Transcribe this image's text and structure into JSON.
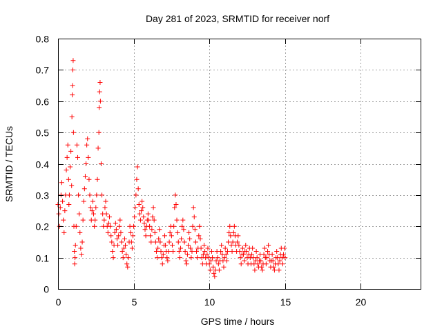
{
  "chart_data": {
    "type": "scatter",
    "title": "Day 281 of 2023, SRMTID for receiver norf",
    "xlabel": "GPS time / hours",
    "ylabel": "SRMTID / TECUs",
    "xlim": [
      0,
      24
    ],
    "ylim": [
      0,
      0.8
    ],
    "xticks": [
      0,
      5,
      10,
      15,
      20
    ],
    "xtick_labels": [
      "0",
      "5",
      "10",
      "15",
      "20"
    ],
    "yticks": [
      0,
      0.1,
      0.2,
      0.3,
      0.4,
      0.5,
      0.6,
      0.7,
      0.8
    ],
    "ytick_labels": [
      "0",
      "0.1",
      "0.2",
      "0.3",
      "0.4",
      "0.5",
      "0.6",
      "0.7",
      "0.8"
    ],
    "grid": true,
    "marker": "+",
    "color": "#ff0000",
    "series": [
      {
        "name": "SRMTID",
        "points": [
          [
            0.0,
            0.27
          ],
          [
            0.05,
            0.24
          ],
          [
            0.1,
            0.2
          ],
          [
            0.15,
            0.26
          ],
          [
            0.2,
            0.3
          ],
          [
            0.25,
            0.34
          ],
          [
            0.3,
            0.28
          ],
          [
            0.35,
            0.22
          ],
          [
            0.4,
            0.18
          ],
          [
            0.45,
            0.25
          ],
          [
            0.5,
            0.3
          ],
          [
            0.55,
            0.38
          ],
          [
            0.6,
            0.42
          ],
          [
            0.65,
            0.46
          ],
          [
            0.7,
            0.35
          ],
          [
            0.72,
            0.27
          ],
          [
            0.75,
            0.3
          ],
          [
            0.8,
            0.39
          ],
          [
            0.85,
            0.44
          ],
          [
            0.9,
            0.33
          ],
          [
            0.92,
            0.55
          ],
          [
            0.94,
            0.62
          ],
          [
            0.96,
            0.65
          ],
          [
            0.98,
            0.7
          ],
          [
            1.0,
            0.73
          ],
          [
            1.02,
            0.5
          ],
          [
            1.05,
            0.2
          ],
          [
            1.08,
            0.12
          ],
          [
            1.1,
            0.08
          ],
          [
            1.12,
            0.1
          ],
          [
            1.15,
            0.14
          ],
          [
            1.2,
            0.2
          ],
          [
            1.25,
            0.46
          ],
          [
            1.3,
            0.42
          ],
          [
            1.35,
            0.3
          ],
          [
            1.4,
            0.24
          ],
          [
            1.45,
            0.18
          ],
          [
            1.5,
            0.13
          ],
          [
            1.55,
            0.11
          ],
          [
            1.6,
            0.15
          ],
          [
            1.65,
            0.22
          ],
          [
            1.7,
            0.28
          ],
          [
            1.75,
            0.32
          ],
          [
            1.8,
            0.36
          ],
          [
            1.85,
            0.4
          ],
          [
            1.9,
            0.46
          ],
          [
            1.95,
            0.48
          ],
          [
            2.0,
            0.42
          ],
          [
            2.05,
            0.35
          ],
          [
            2.1,
            0.3
          ],
          [
            2.15,
            0.26
          ],
          [
            2.2,
            0.22
          ],
          [
            2.25,
            0.25
          ],
          [
            2.3,
            0.28
          ],
          [
            2.35,
            0.24
          ],
          [
            2.4,
            0.2
          ],
          [
            2.45,
            0.22
          ],
          [
            2.5,
            0.26
          ],
          [
            2.55,
            0.3
          ],
          [
            2.6,
            0.35
          ],
          [
            2.65,
            0.45
          ],
          [
            2.7,
            0.5
          ],
          [
            2.72,
            0.58
          ],
          [
            2.75,
            0.63
          ],
          [
            2.78,
            0.66
          ],
          [
            2.8,
            0.6
          ],
          [
            2.85,
            0.4
          ],
          [
            2.9,
            0.3
          ],
          [
            2.95,
            0.24
          ],
          [
            3.0,
            0.2
          ],
          [
            3.05,
            0.22
          ],
          [
            3.1,
            0.26
          ],
          [
            3.15,
            0.28
          ],
          [
            3.2,
            0.24
          ],
          [
            3.25,
            0.2
          ],
          [
            3.3,
            0.18
          ],
          [
            3.35,
            0.21
          ],
          [
            3.4,
            0.23
          ],
          [
            3.45,
            0.2
          ],
          [
            3.5,
            0.17
          ],
          [
            3.55,
            0.15
          ],
          [
            3.6,
            0.12
          ],
          [
            3.65,
            0.1
          ],
          [
            3.7,
            0.14
          ],
          [
            3.75,
            0.18
          ],
          [
            3.8,
            0.21
          ],
          [
            3.85,
            0.19
          ],
          [
            3.9,
            0.16
          ],
          [
            3.95,
            0.14
          ],
          [
            4.0,
            0.17
          ],
          [
            4.05,
            0.2
          ],
          [
            4.1,
            0.22
          ],
          [
            4.15,
            0.18
          ],
          [
            4.2,
            0.15
          ],
          [
            4.25,
            0.12
          ],
          [
            4.3,
            0.1
          ],
          [
            4.35,
            0.13
          ],
          [
            4.4,
            0.16
          ],
          [
            4.45,
            0.14
          ],
          [
            4.5,
            0.11
          ],
          [
            4.55,
            0.08
          ],
          [
            4.6,
            0.07
          ],
          [
            4.65,
            0.1
          ],
          [
            4.7,
            0.15
          ],
          [
            4.75,
            0.2
          ],
          [
            4.8,
            0.18
          ],
          [
            4.85,
            0.15
          ],
          [
            4.9,
            0.13
          ],
          [
            4.95,
            0.17
          ],
          [
            5.0,
            0.2
          ],
          [
            5.05,
            0.23
          ],
          [
            5.1,
            0.26
          ],
          [
            5.15,
            0.3
          ],
          [
            5.2,
            0.35
          ],
          [
            5.25,
            0.39
          ],
          [
            5.3,
            0.32
          ],
          [
            5.35,
            0.27
          ],
          [
            5.4,
            0.24
          ],
          [
            5.45,
            0.22
          ],
          [
            5.5,
            0.25
          ],
          [
            5.55,
            0.28
          ],
          [
            5.6,
            0.26
          ],
          [
            5.65,
            0.23
          ],
          [
            5.7,
            0.21
          ],
          [
            5.75,
            0.19
          ],
          [
            5.8,
            0.17
          ],
          [
            5.85,
            0.2
          ],
          [
            5.9,
            0.22
          ],
          [
            5.95,
            0.24
          ],
          [
            6.0,
            0.22
          ],
          [
            6.05,
            0.2
          ],
          [
            6.1,
            0.17
          ],
          [
            6.15,
            0.15
          ],
          [
            6.2,
            0.19
          ],
          [
            6.25,
            0.23
          ],
          [
            6.3,
            0.26
          ],
          [
            6.35,
            0.22
          ],
          [
            6.4,
            0.18
          ],
          [
            6.45,
            0.15
          ],
          [
            6.5,
            0.12
          ],
          [
            6.55,
            0.1
          ],
          [
            6.6,
            0.13
          ],
          [
            6.65,
            0.16
          ],
          [
            6.7,
            0.19
          ],
          [
            6.75,
            0.15
          ],
          [
            6.8,
            0.12
          ],
          [
            6.85,
            0.1
          ],
          [
            6.9,
            0.08
          ],
          [
            6.95,
            0.11
          ],
          [
            7.0,
            0.14
          ],
          [
            7.05,
            0.17
          ],
          [
            7.1,
            0.14
          ],
          [
            7.15,
            0.12
          ],
          [
            7.2,
            0.1
          ],
          [
            7.25,
            0.09
          ],
          [
            7.3,
            0.12
          ],
          [
            7.35,
            0.15
          ],
          [
            7.4,
            0.18
          ],
          [
            7.45,
            0.2
          ],
          [
            7.5,
            0.17
          ],
          [
            7.55,
            0.14
          ],
          [
            7.6,
            0.12
          ],
          [
            7.65,
            0.2
          ],
          [
            7.7,
            0.26
          ],
          [
            7.75,
            0.3
          ],
          [
            7.8,
            0.27
          ],
          [
            7.85,
            0.22
          ],
          [
            7.9,
            0.18
          ],
          [
            7.95,
            0.15
          ],
          [
            8.0,
            0.12
          ],
          [
            8.05,
            0.1
          ],
          [
            8.1,
            0.13
          ],
          [
            8.15,
            0.16
          ],
          [
            8.2,
            0.2
          ],
          [
            8.25,
            0.22
          ],
          [
            8.3,
            0.19
          ],
          [
            8.35,
            0.15
          ],
          [
            8.4,
            0.12
          ],
          [
            8.45,
            0.09
          ],
          [
            8.5,
            0.08
          ],
          [
            8.55,
            0.11
          ],
          [
            8.6,
            0.14
          ],
          [
            8.65,
            0.18
          ],
          [
            8.7,
            0.16
          ],
          [
            8.75,
            0.13
          ],
          [
            8.8,
            0.1
          ],
          [
            8.85,
            0.12
          ],
          [
            8.9,
            0.2
          ],
          [
            8.95,
            0.26
          ],
          [
            9.0,
            0.23
          ],
          [
            9.05,
            0.19
          ],
          [
            9.1,
            0.15
          ],
          [
            9.15,
            0.12
          ],
          [
            9.2,
            0.1
          ],
          [
            9.25,
            0.13
          ],
          [
            9.3,
            0.17
          ],
          [
            9.35,
            0.2
          ],
          [
            9.4,
            0.16
          ],
          [
            9.45,
            0.13
          ],
          [
            9.5,
            0.1
          ],
          [
            9.55,
            0.08
          ],
          [
            9.6,
            0.11
          ],
          [
            9.65,
            0.14
          ],
          [
            9.7,
            0.12
          ],
          [
            9.75,
            0.1
          ],
          [
            9.8,
            0.08
          ],
          [
            9.85,
            0.11
          ],
          [
            9.9,
            0.13
          ],
          [
            9.95,
            0.1
          ],
          [
            10.0,
            0.08
          ],
          [
            10.05,
            0.06
          ],
          [
            10.1,
            0.09
          ],
          [
            10.15,
            0.12
          ],
          [
            10.2,
            0.1
          ],
          [
            10.25,
            0.07
          ],
          [
            10.3,
            0.05
          ],
          [
            10.35,
            0.04
          ],
          [
            10.4,
            0.06
          ],
          [
            10.45,
            0.09
          ],
          [
            10.5,
            0.12
          ],
          [
            10.55,
            0.1
          ],
          [
            10.6,
            0.08
          ],
          [
            10.65,
            0.06
          ],
          [
            10.7,
            0.09
          ],
          [
            10.75,
            0.12
          ],
          [
            10.8,
            0.14
          ],
          [
            10.85,
            0.11
          ],
          [
            10.9,
            0.09
          ],
          [
            10.95,
            0.07
          ],
          [
            11.0,
            0.1
          ],
          [
            11.05,
            0.13
          ],
          [
            11.1,
            0.11
          ],
          [
            11.15,
            0.09
          ],
          [
            11.2,
            0.12
          ],
          [
            11.25,
            0.15
          ],
          [
            11.3,
            0.18
          ],
          [
            11.35,
            0.2
          ],
          [
            11.4,
            0.17
          ],
          [
            11.45,
            0.14
          ],
          [
            11.5,
            0.12
          ],
          [
            11.55,
            0.15
          ],
          [
            11.6,
            0.18
          ],
          [
            11.65,
            0.2
          ],
          [
            11.7,
            0.17
          ],
          [
            11.75,
            0.14
          ],
          [
            11.8,
            0.12
          ],
          [
            11.85,
            0.15
          ],
          [
            11.9,
            0.17
          ],
          [
            11.95,
            0.14
          ],
          [
            12.0,
            0.12
          ],
          [
            12.05,
            0.1
          ],
          [
            12.1,
            0.08
          ],
          [
            12.15,
            0.11
          ],
          [
            12.2,
            0.13
          ],
          [
            12.25,
            0.11
          ],
          [
            12.3,
            0.09
          ],
          [
            12.35,
            0.12
          ],
          [
            12.4,
            0.14
          ],
          [
            12.45,
            0.12
          ],
          [
            12.5,
            0.1
          ],
          [
            12.55,
            0.08
          ],
          [
            12.6,
            0.11
          ],
          [
            12.65,
            0.13
          ],
          [
            12.7,
            0.1
          ],
          [
            12.75,
            0.08
          ],
          [
            12.8,
            0.11
          ],
          [
            12.85,
            0.13
          ],
          [
            12.9,
            0.1
          ],
          [
            12.95,
            0.08
          ],
          [
            13.0,
            0.06
          ],
          [
            13.05,
            0.09
          ],
          [
            13.1,
            0.12
          ],
          [
            13.15,
            0.1
          ],
          [
            13.2,
            0.08
          ],
          [
            13.25,
            0.07
          ],
          [
            13.3,
            0.09
          ],
          [
            13.35,
            0.11
          ],
          [
            13.4,
            0.09
          ],
          [
            13.45,
            0.07
          ],
          [
            13.5,
            0.06
          ],
          [
            13.55,
            0.08
          ],
          [
            13.6,
            0.11
          ],
          [
            13.65,
            0.13
          ],
          [
            13.7,
            0.1
          ],
          [
            13.75,
            0.08
          ],
          [
            13.8,
            0.1
          ],
          [
            13.85,
            0.12
          ],
          [
            13.9,
            0.14
          ],
          [
            13.95,
            0.11
          ],
          [
            14.0,
            0.09
          ],
          [
            14.05,
            0.07
          ],
          [
            14.1,
            0.09
          ],
          [
            14.15,
            0.11
          ],
          [
            14.2,
            0.09
          ],
          [
            14.25,
            0.07
          ],
          [
            14.3,
            0.06
          ],
          [
            14.35,
            0.08
          ],
          [
            14.4,
            0.1
          ],
          [
            14.45,
            0.12
          ],
          [
            14.5,
            0.1
          ],
          [
            14.55,
            0.08
          ],
          [
            14.6,
            0.06
          ],
          [
            14.65,
            0.09
          ],
          [
            14.7,
            0.11
          ],
          [
            14.75,
            0.13
          ],
          [
            14.8,
            0.1
          ],
          [
            14.85,
            0.08
          ],
          [
            14.9,
            0.11
          ],
          [
            14.95,
            0.13
          ],
          [
            15.0,
            0.1
          ]
        ]
      }
    ]
  }
}
